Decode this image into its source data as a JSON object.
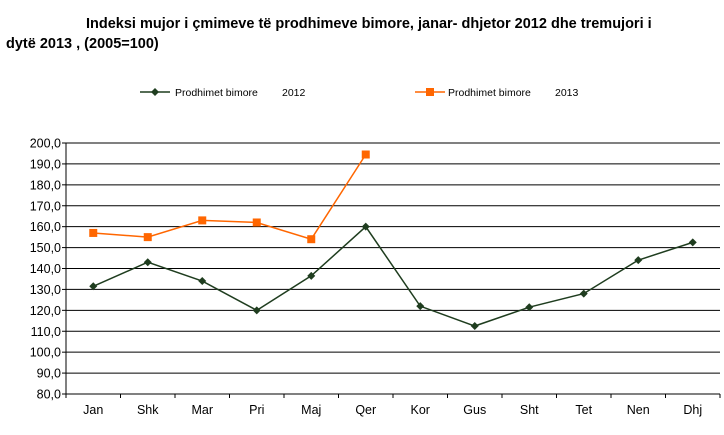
{
  "title_line1": "Indeksi mujor i çmimeve të prodhimeve bimore, janar- dhjetor 2012 dhe tremujori i",
  "title_line2": "dytë 2013 , (2005=100)",
  "chart_data": {
    "type": "line",
    "title": "Indeksi mujor i çmimeve të prodhimeve bimore, janar- dhjetor 2012 dhe tremujori i dytë 2013 , (2005=100)",
    "categories": [
      "Jan",
      "Shk",
      "Mar",
      "Pri",
      "Maj",
      "Qer",
      "Kor",
      "Gus",
      "Sht",
      "Tet",
      "Nen",
      "Dhj"
    ],
    "ylim": [
      80,
      200
    ],
    "ytick_labels": [
      "200,0",
      "190,0",
      "180,0",
      "170,0",
      "160,0",
      "150,0",
      "140,0",
      "130,0",
      "120,0",
      "110,0",
      "100,0",
      "90,0",
      "80,0"
    ],
    "grid": true,
    "legend_position": "top",
    "series": [
      {
        "name": "Prodhimet bimore",
        "year": "2012",
        "color": "#1f3d1f",
        "marker": "diamond",
        "values": [
          131.5,
          143,
          134,
          120,
          136.5,
          160,
          122,
          112.5,
          121.5,
          128,
          144,
          152.5
        ]
      },
      {
        "name": "Prodhimet bimore",
        "year": "2013",
        "color": "#ff6600",
        "marker": "square",
        "values": [
          157,
          155,
          163,
          162,
          154,
          194.5,
          null,
          null,
          null,
          null,
          null,
          null
        ]
      }
    ]
  }
}
